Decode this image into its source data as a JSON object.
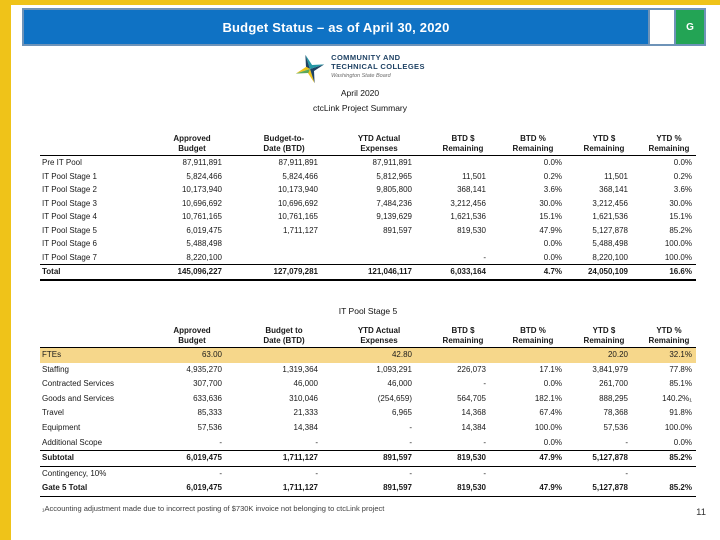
{
  "colors": {
    "accent_gold": "#EFC319",
    "header_blue": "#0F72C4",
    "header_border": "#6E93B8",
    "badge_green": "#23A455",
    "highlight_row": "#F6D78B",
    "logo_navy": "#1F4264",
    "logo_teal": "#2497A5"
  },
  "header": {
    "title": "Budget Status – as of April 30, 2020",
    "badge_label": "G"
  },
  "logo": {
    "line1": "COMMUNITY AND",
    "line2": "TECHNICAL COLLEGES",
    "sub": "Washington State Board"
  },
  "subtitle": {
    "line1": "April 2020",
    "line2": "ctcLink Project Summary"
  },
  "table1": {
    "columns": [
      "",
      "Approved\nBudget",
      "Budget-to-\nDate (BTD)",
      "YTD Actual\nExpenses",
      "BTD $\nRemaining",
      "BTD %\nRemaining",
      "YTD $\nRemaining",
      "YTD %\nRemaining"
    ],
    "rows": [
      {
        "cells": [
          "Pre IT Pool",
          "87,911,891",
          "87,911,891",
          "87,911,891",
          "",
          "0.0%",
          "",
          "0.0%"
        ],
        "style": "normal"
      },
      {
        "cells": [
          "IT Pool Stage 1",
          "5,824,466",
          "5,824,466",
          "5,812,965",
          "11,501",
          "0.2%",
          "11,501",
          "0.2%"
        ],
        "style": "normal"
      },
      {
        "cells": [
          "IT Pool Stage 2",
          "10,173,940",
          "10,173,940",
          "9,805,800",
          "368,141",
          "3.6%",
          "368,141",
          "3.6%"
        ],
        "style": "normal"
      },
      {
        "cells": [
          "IT Pool Stage 3",
          "10,696,692",
          "10,696,692",
          "7,484,236",
          "3,212,456",
          "30.0%",
          "3,212,456",
          "30.0%"
        ],
        "style": "normal"
      },
      {
        "cells": [
          "IT Pool Stage 4",
          "10,761,165",
          "10,761,165",
          "9,139,629",
          "1,621,536",
          "15.1%",
          "1,621,536",
          "15.1%"
        ],
        "style": "normal"
      },
      {
        "cells": [
          "IT Pool Stage 5",
          "6,019,475",
          "1,711,127",
          "891,597",
          "819,530",
          "47.9%",
          "5,127,878",
          "85.2%"
        ],
        "style": "normal"
      },
      {
        "cells": [
          "IT Pool Stage 6",
          "5,488,498",
          "",
          "",
          "",
          "0.0%",
          "5,488,498",
          "100.0%"
        ],
        "style": "normal"
      },
      {
        "cells": [
          "IT Pool Stage 7",
          "8,220,100",
          "",
          "",
          "-",
          "0.0%",
          "8,220,100",
          "100.0%"
        ],
        "style": "normal"
      },
      {
        "cells": [
          "Total",
          "145,096,227",
          "127,079,281",
          "121,046,117",
          "6,033,164",
          "4.7%",
          "24,050,109",
          "16.6%"
        ],
        "style": "total"
      }
    ]
  },
  "table2": {
    "title": "IT Pool Stage 5",
    "columns": [
      "",
      "Approved\nBudget",
      "Budget to\nDate (BTD)",
      "YTD Actual\nExpenses",
      "BTD $\nRemaining",
      "BTD %\nRemaining",
      "YTD $\nRemaining",
      "YTD %\nRemaining"
    ],
    "rows": [
      {
        "cells": [
          "FTEs",
          "63.00",
          "",
          "42.80",
          "",
          "",
          "20.20",
          "32.1%"
        ],
        "style": "highlight"
      },
      {
        "cells": [
          "Staffing",
          "4,935,270",
          "1,319,364",
          "1,093,291",
          "226,073",
          "17.1%",
          "3,841,979",
          "77.8%"
        ],
        "style": "normal"
      },
      {
        "cells": [
          "Contracted Services",
          "307,700",
          "46,000",
          "46,000",
          "-",
          "0.0%",
          "261,700",
          "85.1%"
        ],
        "style": "normal"
      },
      {
        "cells": [
          "Goods and Services",
          "633,636",
          "310,046",
          "(254,659)",
          "564,705",
          "182.1%",
          "888,295",
          "140.2%₁"
        ],
        "style": "normal"
      },
      {
        "cells": [
          "Travel",
          "85,333",
          "21,333",
          "6,965",
          "14,368",
          "67.4%",
          "78,368",
          "91.8%"
        ],
        "style": "normal"
      },
      {
        "cells": [
          "Equipment",
          "57,536",
          "14,384",
          "-",
          "14,384",
          "100.0%",
          "57,536",
          "100.0%"
        ],
        "style": "normal"
      },
      {
        "cells": [
          "Additional Scope",
          "-",
          "-",
          "-",
          "-",
          "0.0%",
          "-",
          "0.0%"
        ],
        "style": "normal"
      },
      {
        "cells": [
          "Subtotal",
          "6,019,475",
          "1,711,127",
          "891,597",
          "819,530",
          "47.9%",
          "5,127,878",
          "85.2%"
        ],
        "style": "subtotal"
      },
      {
        "cells": [
          "Contingency, 10%",
          "-",
          "-",
          "-",
          "-",
          "",
          "-",
          ""
        ],
        "style": "normal"
      },
      {
        "cells": [
          "Gate 5 Total",
          "6,019,475",
          "1,711,127",
          "891,597",
          "819,530",
          "47.9%",
          "5,127,878",
          "85.2%"
        ],
        "style": "gate"
      }
    ],
    "footnote": "₁Accounting adjustment made due to incorrect posting of $730K invoice not belonging to ctcLink project"
  },
  "page_number": "11"
}
